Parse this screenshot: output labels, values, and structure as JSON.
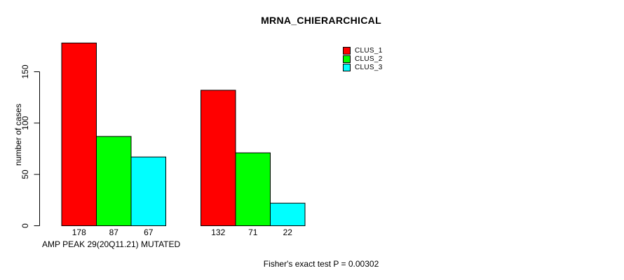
{
  "chart_data": {
    "type": "bar",
    "title": "MRNA_CHIERARCHICAL",
    "xlabel": "AMP PEAK 29(20Q11.21) MUTATED",
    "ylabel": "number of cases",
    "footnote": "Fisher's exact test P = 0.00302",
    "yticks": [
      0,
      50,
      100,
      150
    ],
    "ylim": [
      0,
      178
    ],
    "grid": false,
    "legend_position": "top-right",
    "series": [
      {
        "name": "CLUS_1",
        "color": "#ff0000"
      },
      {
        "name": "CLUS_2",
        "color": "#00ff00"
      },
      {
        "name": "CLUS_3",
        "color": "#00ffff"
      }
    ],
    "groups": [
      {
        "values": [
          178,
          87,
          67
        ]
      },
      {
        "values": [
          132,
          71,
          22
        ]
      }
    ],
    "bar_border_color": "#000000",
    "axis_color": "#000000",
    "background_color": "#ffffff"
  }
}
